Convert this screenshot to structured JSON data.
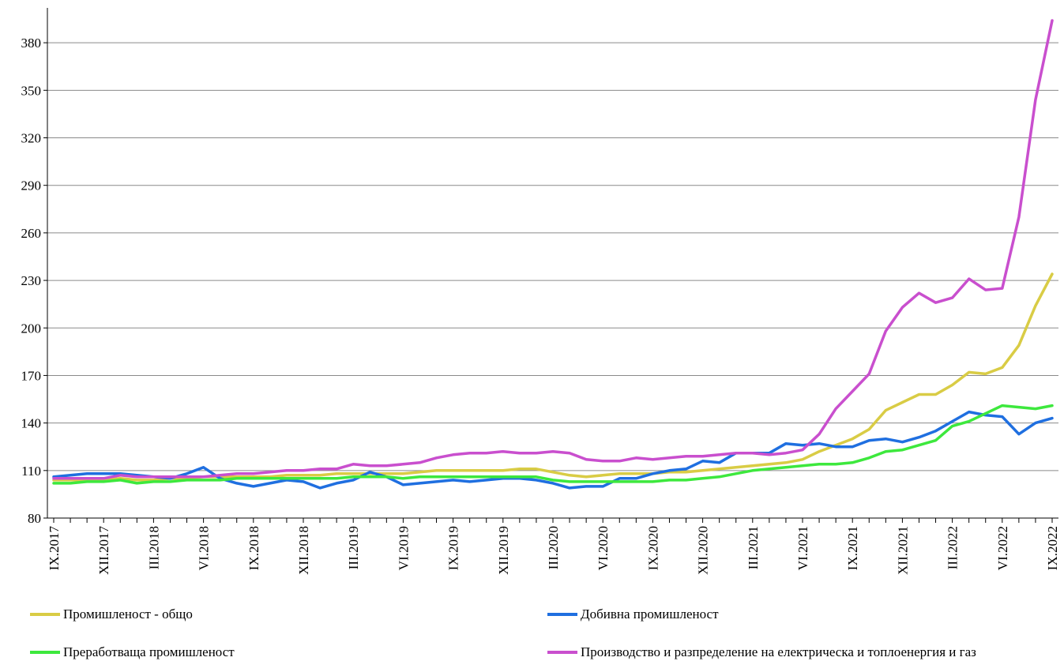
{
  "chart_data": {
    "type": "line",
    "title": "",
    "xlabel": "",
    "ylabel": "",
    "ylim": [
      80,
      400
    ],
    "yticks": [
      80,
      110,
      140,
      170,
      200,
      230,
      260,
      290,
      320,
      350,
      380
    ],
    "grid": "horizontal",
    "legend_position": "bottom",
    "x": [
      "IX.2017",
      "X.2017",
      "XI.2017",
      "XII.2017",
      "I.2018",
      "II.2018",
      "III.2018",
      "IV.2018",
      "V.2018",
      "VI.2018",
      "VII.2018",
      "VIII.2018",
      "IX.2018",
      "X.2018",
      "XI.2018",
      "XII.2018",
      "I.2019",
      "II.2019",
      "III.2019",
      "IV.2019",
      "V.2019",
      "VI.2019",
      "VII.2019",
      "VIII.2019",
      "IX.2019",
      "X.2019",
      "XI.2019",
      "XII.2019",
      "I.2020",
      "II.2020",
      "III.2020",
      "IV.2020",
      "V.2020",
      "VI.2020",
      "VII.2020",
      "VIII.2020",
      "IX.2020",
      "X.2020",
      "XI.2020",
      "XII.2020",
      "I.2021",
      "II.2021",
      "III.2021",
      "IV.2021",
      "V.2021",
      "VI.2021",
      "VII.2021",
      "VIII.2021",
      "IX.2021",
      "X.2021",
      "XI.2021",
      "XII.2021",
      "I.2022",
      "II.2022",
      "III.2022",
      "IV.2022",
      "V.2022",
      "VI.2022",
      "VII.2022",
      "VIII.2022",
      "IX.2022"
    ],
    "tick_labels": [
      "IX.2017",
      "XII.2017",
      "III.2018",
      "VI.2018",
      "IX.2018",
      "XII.2018",
      "III.2019",
      "VI.2019",
      "IX.2019",
      "XII.2019",
      "III.2020",
      "VI.2020",
      "IX.2020",
      "XII.2020",
      "III.2021",
      "VI.2021",
      "IX.2021",
      "XII.2021",
      "III.2022",
      "VI.2022",
      "IX.2022"
    ],
    "series": [
      {
        "name": "Промишленост - общо",
        "color": "#d9cc45",
        "values": [
          104,
          104,
          104,
          104,
          105,
          104,
          104,
          105,
          105,
          106,
          106,
          106,
          106,
          106,
          107,
          107,
          107,
          108,
          108,
          108,
          108,
          108,
          109,
          110,
          110,
          110,
          110,
          110,
          111,
          111,
          109,
          107,
          106,
          107,
          108,
          108,
          108,
          109,
          109,
          110,
          111,
          112,
          113,
          114,
          115,
          117,
          122,
          126,
          130,
          136,
          148,
          153,
          158,
          158,
          164,
          172,
          171,
          175,
          189,
          214,
          234
        ]
      },
      {
        "name": "Добивна промишленост",
        "color": "#1f6fe0",
        "values": [
          106,
          107,
          108,
          108,
          108,
          107,
          106,
          105,
          108,
          112,
          105,
          102,
          100,
          102,
          104,
          103,
          99,
          102,
          104,
          109,
          106,
          101,
          102,
          103,
          104,
          103,
          104,
          105,
          105,
          104,
          102,
          99,
          100,
          100,
          105,
          105,
          108,
          110,
          111,
          116,
          115,
          121,
          121,
          121,
          127,
          126,
          127,
          125,
          125,
          129,
          130,
          128,
          131,
          135,
          141,
          147,
          145,
          144,
          133,
          140,
          143
        ]
      },
      {
        "name": "Преработваща промишленост",
        "color": "#3de83d",
        "values": [
          102,
          102,
          103,
          103,
          104,
          102,
          103,
          103,
          104,
          104,
          104,
          105,
          105,
          105,
          105,
          105,
          105,
          105,
          106,
          106,
          106,
          105,
          106,
          106,
          106,
          106,
          106,
          106,
          106,
          106,
          104,
          103,
          103,
          103,
          103,
          103,
          103,
          104,
          104,
          105,
          106,
          108,
          110,
          111,
          112,
          113,
          114,
          114,
          115,
          118,
          122,
          123,
          126,
          129,
          138,
          141,
          146,
          151,
          150,
          149,
          151
        ]
      },
      {
        "name": "Производство и разпределение на електрическа и топлоенергия  и газ",
        "color": "#c94fce",
        "values": [
          105,
          105,
          105,
          105,
          107,
          106,
          106,
          106,
          106,
          106,
          107,
          108,
          108,
          109,
          110,
          110,
          111,
          111,
          114,
          113,
          113,
          114,
          115,
          118,
          120,
          121,
          121,
          122,
          121,
          121,
          122,
          121,
          117,
          116,
          116,
          118,
          117,
          118,
          119,
          119,
          120,
          121,
          121,
          120,
          121,
          123,
          133,
          149,
          160,
          171,
          198,
          213,
          222,
          216,
          219,
          231,
          224,
          225,
          270,
          344,
          394
        ]
      }
    ]
  }
}
